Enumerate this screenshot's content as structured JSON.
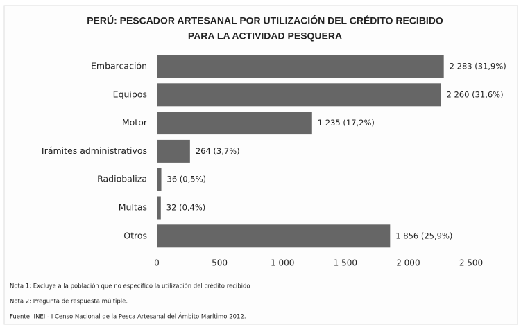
{
  "chart_data": {
    "type": "bar",
    "orientation": "horizontal",
    "title": [
      "PERÚ: PESCADOR ARTESANAL POR UTILIZACIÓN DEL CRÉDITO RECIBIDO",
      "PARA LA ACTIVIDAD PESQUERA"
    ],
    "categories": [
      "Embarcación",
      "Equipos",
      "Motor",
      "Trámites administrativos",
      "Radiobaliza",
      "Multas",
      "Otros"
    ],
    "values": [
      2283,
      2260,
      1235,
      264,
      36,
      32,
      1856
    ],
    "value_labels": [
      "2 283  (31,9%)",
      "2 260  (31,6%)",
      "1 235  (17,2%)",
      "264  (3,7%)",
      "36  (0,5%)",
      "32  (0,4%)",
      "1 856  (25,9%)"
    ],
    "color": "#666666",
    "xlim": [
      0,
      2500
    ],
    "xticks": [
      0,
      500,
      {
        "value": 1000,
        "label": "1 000"
      },
      {
        "value": 1500,
        "label": "1 500"
      },
      {
        "value": 2000,
        "label": "2 000"
      },
      {
        "value": 2500,
        "label": "2 500"
      }
    ],
    "notes": [
      "Nota 1: Excluye a la población que no especificó  la utilización del crédito recibido",
      "Nota 2: Pregunta de respuesta múltiple.",
      "Fuente: INEI - I Censo Nacional de la Pesca Artesanal del Ámbito Marítimo 2012."
    ]
  }
}
